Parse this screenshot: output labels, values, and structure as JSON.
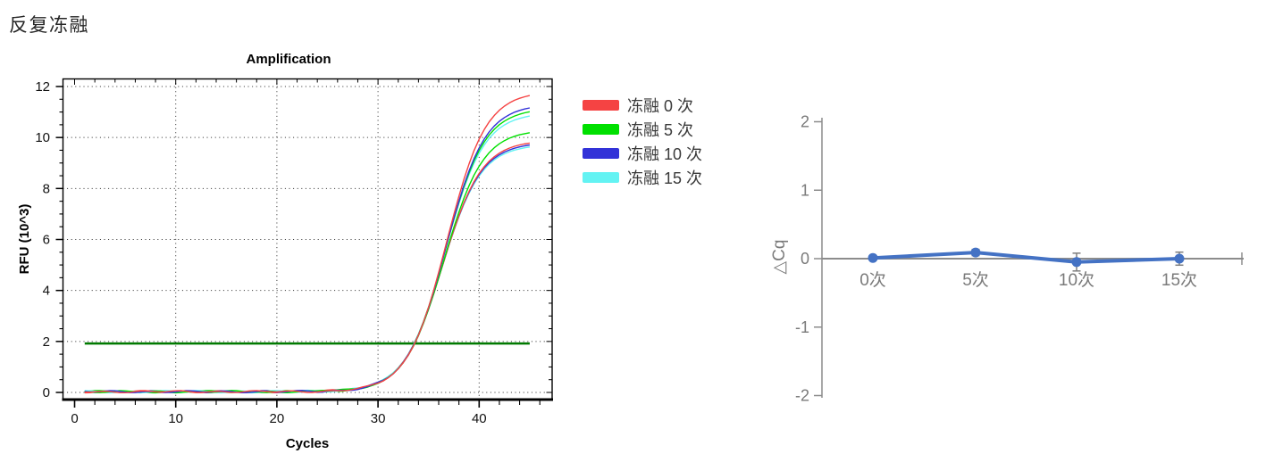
{
  "page": {
    "title": "反复冻融"
  },
  "legend": {
    "items": [
      {
        "label": "冻融 0 次",
        "color": "#f54343"
      },
      {
        "label": "冻融 5 次",
        "color": "#00e000"
      },
      {
        "label": "冻融 10 次",
        "color": "#3232d8"
      },
      {
        "label": "冻融 15 次",
        "color": "#63f3f3"
      }
    ]
  },
  "chart_data": [
    {
      "type": "line",
      "title": "Amplification",
      "xlabel": "Cycles",
      "ylabel": "RFU (10^3)",
      "xlim": [
        0,
        47
      ],
      "ylim": [
        0,
        12
      ],
      "x_ticks": [
        0,
        10,
        20,
        30,
        40
      ],
      "y_ticks": [
        0,
        2,
        4,
        6,
        8,
        10,
        12
      ],
      "x_minor_step": 2,
      "y_minor_step": 0.5,
      "grid": "dotted",
      "grid_color": "#2a2a2a",
      "axis_color": "#000000",
      "threshold": {
        "value": 1.92,
        "color": "#007a00",
        "x_start": 1,
        "x_end": 45
      },
      "curve_model": {
        "kind": "logistic",
        "k": 0.52,
        "baseline": 0.03,
        "x_start": 1,
        "x_end": 45,
        "step": 0.5
      },
      "series": [
        {
          "name": "冻融 15 次 (rep 2)",
          "color": "#63f3f3",
          "plateau": 9.7,
          "midpoint": 36.3
        },
        {
          "name": "冻融 10 次 (rep 2)",
          "color": "#3232d8",
          "plateau": 9.78,
          "midpoint": 36.33
        },
        {
          "name": "冻融 0 次 (rep 2)",
          "color": "#f54343",
          "plateau": 9.86,
          "midpoint": 36.37
        },
        {
          "name": "冻融 5 次 (rep 2)",
          "color": "#00e000",
          "plateau": 10.28,
          "midpoint": 36.5
        },
        {
          "name": "冻融 15 次 (rep 1)",
          "color": "#63f3f3",
          "plateau": 10.95,
          "midpoint": 36.6
        },
        {
          "name": "冻融 5 次 (rep 1)",
          "color": "#00e000",
          "plateau": 11.12,
          "midpoint": 36.65
        },
        {
          "name": "冻融 10 次 (rep 1)",
          "color": "#3232d8",
          "plateau": 11.28,
          "midpoint": 36.7
        },
        {
          "name": "冻融 0 次 (rep 1)",
          "color": "#f54343",
          "plateau": 11.78,
          "midpoint": 36.8
        }
      ]
    },
    {
      "type": "line",
      "title": "",
      "ylabel": "△Cq",
      "categories": [
        "0次",
        "5次",
        "10次",
        "15次"
      ],
      "values": [
        0.01,
        0.09,
        -0.05,
        0.0
      ],
      "errors": [
        0.0,
        0.045,
        0.13,
        0.095
      ],
      "ylim": [
        -2,
        2
      ],
      "y_ticks": [
        2,
        1,
        0,
        -1,
        -2
      ],
      "line_color": "#4472c4",
      "marker": "circle",
      "axis_color": "#8c8c8c",
      "error_color": "#7f7f7f",
      "label_color": "#7a7a7a"
    }
  ]
}
